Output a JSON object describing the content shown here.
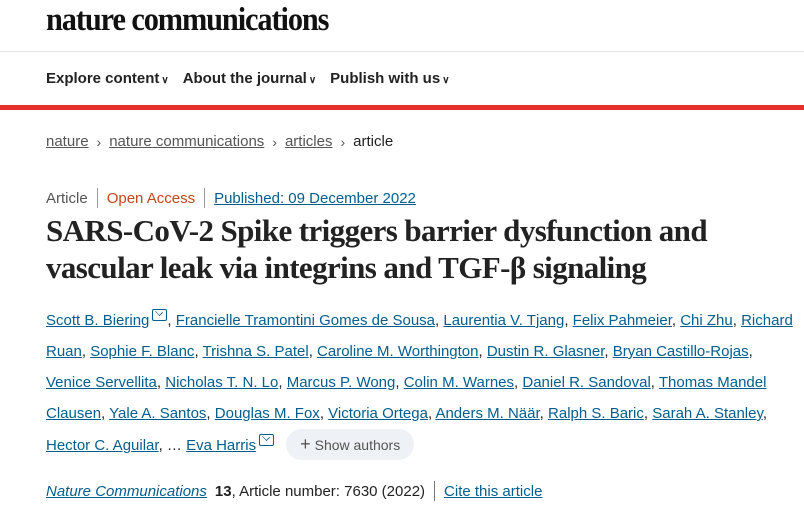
{
  "header": {
    "logo": "nature communications"
  },
  "nav": [
    {
      "label": "Explore content"
    },
    {
      "label": "About the journal"
    },
    {
      "label": "Publish with us"
    }
  ],
  "accent_color": "#e8302a",
  "link_color": "#025e8d",
  "breadcrumb": [
    {
      "label": "nature"
    },
    {
      "label": "nature communications"
    },
    {
      "label": "articles"
    },
    {
      "label": "article"
    }
  ],
  "article": {
    "type": "Article",
    "access": "Open Access",
    "published": "Published: 09 December 2022",
    "title": "SARS-CoV-2 Spike triggers barrier dysfunction and vascular leak via integrins and TGF-β signaling",
    "authors": [
      {
        "name": "Scott B. Biering",
        "mail": true
      },
      {
        "name": "Francielle Tramontini Gomes de Sousa"
      },
      {
        "name": "Laurentia V. Tjang"
      },
      {
        "name": "Felix Pahmeier"
      },
      {
        "name": "Chi Zhu"
      },
      {
        "name": "Richard Ruan"
      },
      {
        "name": "Sophie F. Blanc"
      },
      {
        "name": "Trishna S. Patel"
      },
      {
        "name": "Caroline M. Worthington"
      },
      {
        "name": "Dustin R. Glasner"
      },
      {
        "name": "Bryan Castillo-Rojas"
      },
      {
        "name": "Venice Servellita"
      },
      {
        "name": "Nicholas T. N. Lo"
      },
      {
        "name": "Marcus P. Wong"
      },
      {
        "name": "Colin M. Warnes"
      },
      {
        "name": "Daniel R. Sandoval"
      },
      {
        "name": "Thomas Mandel Clausen"
      },
      {
        "name": "Yale A. Santos"
      },
      {
        "name": "Douglas M. Fox"
      },
      {
        "name": "Victoria Ortega"
      },
      {
        "name": "Anders M. Näär"
      },
      {
        "name": "Ralph S. Baric"
      },
      {
        "name": "Sarah A. Stanley"
      },
      {
        "name": "Hector C. Aguilar"
      }
    ],
    "ellipsis": "…",
    "last_author": {
      "name": "Eva Harris",
      "mail": true
    },
    "show_authors": "Show authors",
    "journal": "Nature Communications",
    "volume": "13",
    "article_number": ", Article number: 7630 (2022)",
    "cite": "Cite this article"
  }
}
